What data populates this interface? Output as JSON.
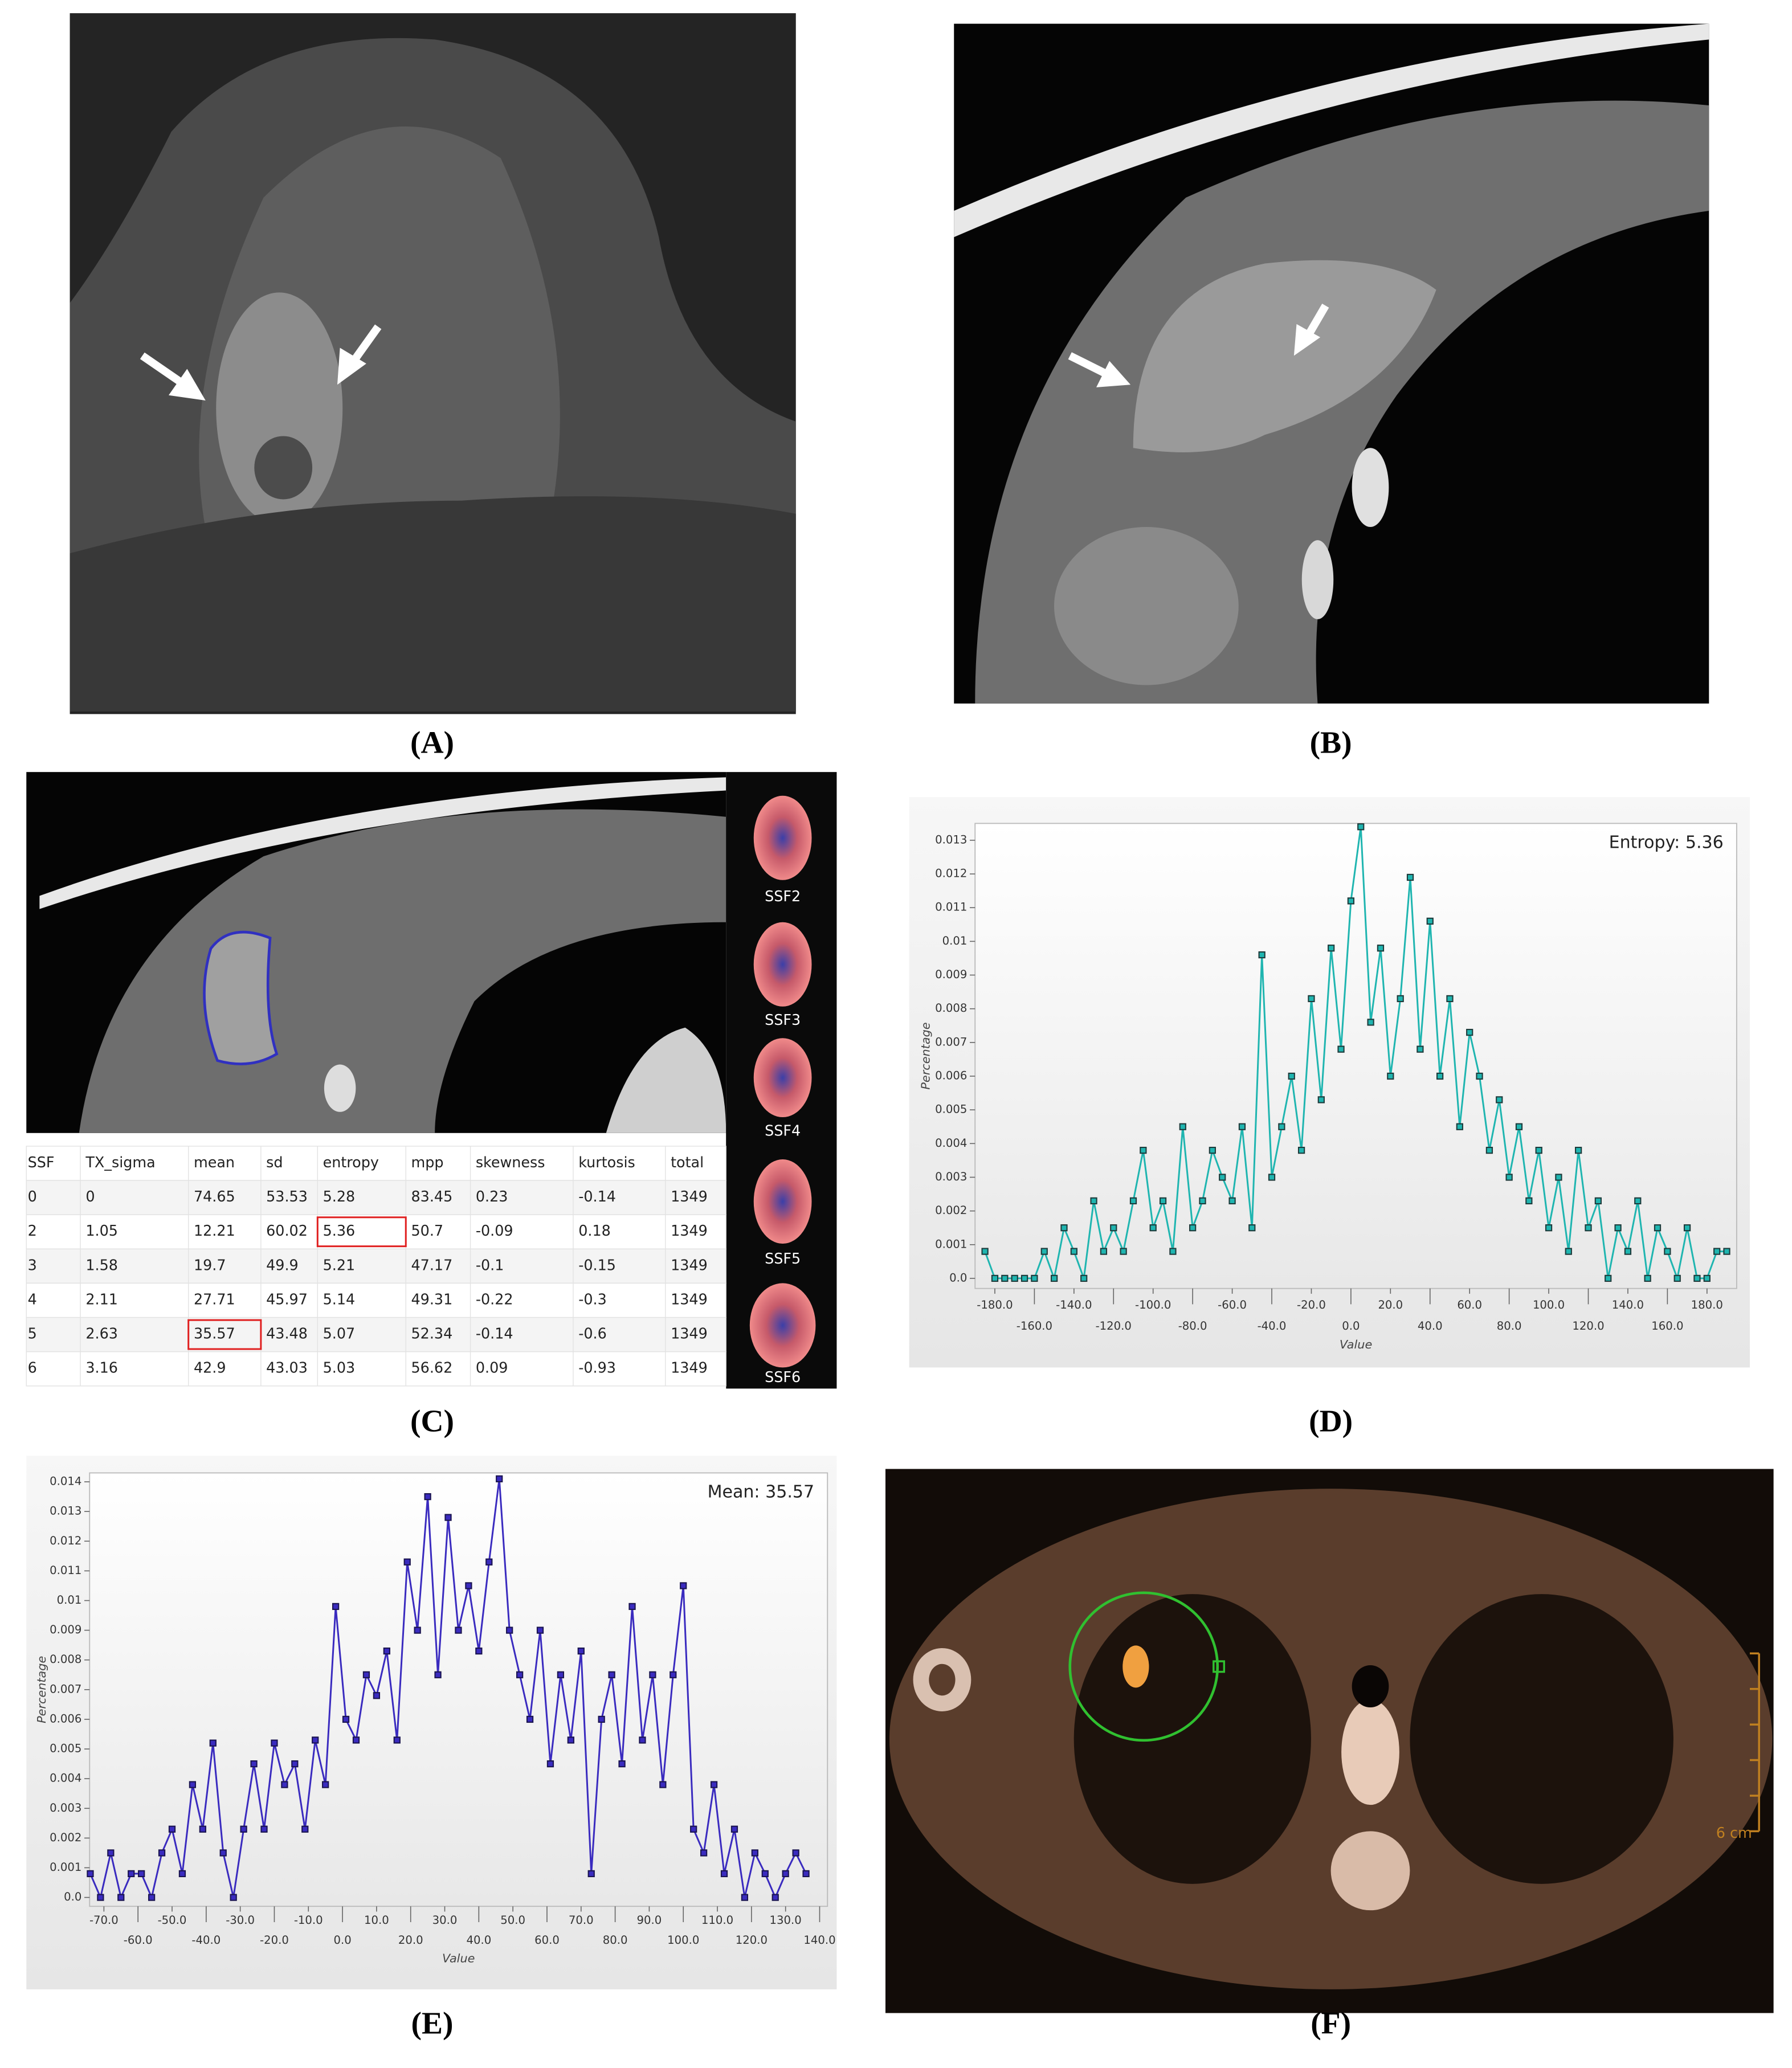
{
  "panels": {
    "labels": [
      "(A)",
      "(B)",
      "(C)",
      "(D)",
      "(E)",
      "(F)"
    ]
  },
  "ssf_labels": [
    "SSF2",
    "SSF3",
    "SSF4",
    "SSF5",
    "SSF6"
  ],
  "scale_label": "6 cm",
  "table": {
    "header": [
      "SSF",
      "TX_sigma",
      "mean",
      "sd",
      "entropy",
      "mpp",
      "skewness",
      "kurtosis",
      "total"
    ],
    "rows": [
      [
        "0",
        "0",
        "74.65",
        "53.53",
        "5.28",
        "83.45",
        "0.23",
        "-0.14",
        "1349"
      ],
      [
        "2",
        "1.05",
        "12.21",
        "60.02",
        "5.36",
        "50.7",
        "-0.09",
        "0.18",
        "1349"
      ],
      [
        "3",
        "1.58",
        "19.7",
        "49.9",
        "5.21",
        "47.17",
        "-0.1",
        "-0.15",
        "1349"
      ],
      [
        "4",
        "2.11",
        "27.71",
        "45.97",
        "5.14",
        "49.31",
        "-0.22",
        "-0.3",
        "1349"
      ],
      [
        "5",
        "2.63",
        "35.57",
        "43.48",
        "5.07",
        "52.34",
        "-0.14",
        "-0.6",
        "1349"
      ],
      [
        "6",
        "3.16",
        "42.9",
        "43.03",
        "5.03",
        "56.62",
        "0.09",
        "-0.93",
        "1349"
      ]
    ]
  },
  "chart_data": [
    {
      "type": "line",
      "annotation": "Entropy: 5.36",
      "x_label": "Value",
      "y_label": "Percentage",
      "color": "#1fb5b0",
      "marker_color": "#1d3a3a",
      "x": [
        -185,
        -180,
        -175,
        -170,
        -165,
        -160,
        -155,
        -150,
        -145,
        -140,
        -135,
        -130,
        -125,
        -120,
        -115,
        -110,
        -105,
        -100,
        -95,
        -90,
        -85,
        -80,
        -75,
        -70,
        -65,
        -60,
        -55,
        -50,
        -45,
        -40,
        -35,
        -30,
        -25,
        -20,
        -15,
        -10,
        -5,
        0,
        5,
        10,
        15,
        20,
        25,
        30,
        35,
        40,
        45,
        50,
        55,
        60,
        65,
        70,
        75,
        80,
        85,
        90,
        95,
        100,
        105,
        110,
        115,
        120,
        125,
        130,
        135,
        140,
        145,
        150,
        155,
        160,
        165,
        170,
        175,
        180,
        185,
        190
      ],
      "values": [
        0.0008,
        0,
        0,
        0,
        0,
        0,
        0.0008,
        0,
        0.0015,
        0.0008,
        0,
        0.0023,
        0.0008,
        0.0015,
        0.0008,
        0.0023,
        0.0038,
        0.0015,
        0.0023,
        0.0008,
        0.0045,
        0.0015,
        0.0023,
        0.0038,
        0.003,
        0.0023,
        0.0045,
        0.0015,
        0.0096,
        0.003,
        0.0045,
        0.006,
        0.0038,
        0.0083,
        0.0053,
        0.0098,
        0.0068,
        0.0112,
        0.0134,
        0.0076,
        0.0098,
        0.006,
        0.0083,
        0.0119,
        0.0068,
        0.0106,
        0.006,
        0.0083,
        0.0045,
        0.0073,
        0.006,
        0.0038,
        0.0053,
        0.003,
        0.0045,
        0.0023,
        0.0038,
        0.0015,
        0.003,
        0.0008,
        0.0038,
        0.0015,
        0.0023,
        0,
        0.0015,
        0.0008,
        0.0023,
        0,
        0.0015,
        0.0008,
        0,
        0.0015,
        0,
        0,
        0.0008,
        0.0008
      ],
      "xlim": [
        -190,
        195
      ],
      "ylim": [
        -0.0003,
        0.0135
      ],
      "xticks": [
        {
          "value": -180,
          "label": "-180.0"
        },
        {
          "value": -160,
          "label": "-160.0"
        },
        {
          "value": -140,
          "label": "-140.0"
        },
        {
          "value": -120,
          "label": "-120.0"
        },
        {
          "value": -100,
          "label": "-100.0"
        },
        {
          "value": -80,
          "label": "-80.0"
        },
        {
          "value": -60,
          "label": "-60.0"
        },
        {
          "value": -40,
          "label": "-40.0"
        },
        {
          "value": -20,
          "label": "-20.0"
        },
        {
          "value": 0,
          "label": "0.0"
        },
        {
          "value": 20,
          "label": "20.0"
        },
        {
          "value": 40,
          "label": "40.0"
        },
        {
          "value": 60,
          "label": "60.0"
        },
        {
          "value": 80,
          "label": "80.0"
        },
        {
          "value": 100,
          "label": "100.0"
        },
        {
          "value": 120,
          "label": "120.0"
        },
        {
          "value": 140,
          "label": "140.0"
        },
        {
          "value": 160,
          "label": "160.0"
        },
        {
          "value": 180,
          "label": "180.0"
        }
      ],
      "yticks": [
        {
          "value": 0,
          "label": "0.0"
        },
        0.001,
        0.002,
        0.003,
        0.004,
        0.005,
        0.006,
        0.007,
        0.008,
        0.009,
        0.01,
        0.011,
        0.012,
        0.013
      ]
    },
    {
      "type": "line",
      "annotation": "Mean: 35.57",
      "x_label": "Value",
      "y_label": "Percentage",
      "color": "#3a2bbf",
      "marker_color": "#1a1450",
      "x": [
        -74,
        -71,
        -68,
        -65,
        -62,
        -59,
        -56,
        -53,
        -50,
        -47,
        -44,
        -41,
        -38,
        -35,
        -32,
        -29,
        -26,
        -23,
        -20,
        -17,
        -14,
        -11,
        -8,
        -5,
        -2,
        1,
        4,
        7,
        10,
        13,
        16,
        19,
        22,
        25,
        28,
        31,
        34,
        37,
        40,
        43,
        46,
        49,
        52,
        55,
        58,
        61,
        64,
        67,
        70,
        73,
        76,
        79,
        82,
        85,
        88,
        91,
        94,
        97,
        100,
        103,
        106,
        109,
        112,
        115,
        118,
        121,
        124,
        127,
        130,
        133,
        136
      ],
      "values": [
        0.0008,
        0,
        0.0015,
        0,
        0.0008,
        0.0008,
        0,
        0.0015,
        0.0023,
        0.0008,
        0.0038,
        0.0023,
        0.0052,
        0.0015,
        0,
        0.0023,
        0.0045,
        0.0023,
        0.0052,
        0.0038,
        0.0045,
        0.0023,
        0.0053,
        0.0038,
        0.0098,
        0.006,
        0.0053,
        0.0075,
        0.0068,
        0.0083,
        0.0053,
        0.0113,
        0.009,
        0.0135,
        0.0075,
        0.0128,
        0.009,
        0.0105,
        0.0083,
        0.0113,
        0.0141,
        0.009,
        0.0075,
        0.006,
        0.009,
        0.0045,
        0.0075,
        0.0053,
        0.0083,
        0.0008,
        0.006,
        0.0075,
        0.0045,
        0.0098,
        0.0053,
        0.0075,
        0.0038,
        0.0075,
        0.0105,
        0.0023,
        0.0015,
        0.0038,
        0.0008,
        0.0023,
        0,
        0.0015,
        0.0008,
        0,
        0.0008,
        0.0015,
        0.0008
      ],
      "xlim": [
        -74.2,
        142.3
      ],
      "ylim": [
        -0.0003,
        0.0143
      ],
      "xticks": [
        {
          "value": -70,
          "label": "-70.0"
        },
        {
          "value": -60,
          "label": "-60.0"
        },
        {
          "value": -50,
          "label": "-50.0"
        },
        {
          "value": -40,
          "label": "-40.0"
        },
        {
          "value": -30,
          "label": "-30.0"
        },
        {
          "value": -20,
          "label": "-20.0"
        },
        {
          "value": -10,
          "label": "-10.0"
        },
        {
          "value": 0,
          "label": "0.0"
        },
        {
          "value": 10,
          "label": "10.0"
        },
        {
          "value": 20,
          "label": "20.0"
        },
        {
          "value": 30,
          "label": "30.0"
        },
        {
          "value": 40,
          "label": "40.0"
        },
        {
          "value": 50,
          "label": "50.0"
        },
        {
          "value": 60,
          "label": "60.0"
        },
        {
          "value": 70,
          "label": "70.0"
        },
        {
          "value": 80,
          "label": "80.0"
        },
        {
          "value": 90,
          "label": "90.0"
        },
        {
          "value": 100,
          "label": "100.0"
        },
        {
          "value": 110,
          "label": "110.0"
        },
        {
          "value": 120,
          "label": "120.0"
        },
        {
          "value": 130,
          "label": "130.0"
        },
        {
          "value": 140,
          "label": "140.0"
        }
      ],
      "yticks": [
        {
          "value": 0,
          "label": "0.0"
        },
        0.001,
        0.002,
        0.003,
        0.004,
        0.005,
        0.006,
        0.007,
        0.008,
        0.009,
        0.01,
        0.011,
        0.012,
        0.013,
        0.014
      ]
    }
  ]
}
